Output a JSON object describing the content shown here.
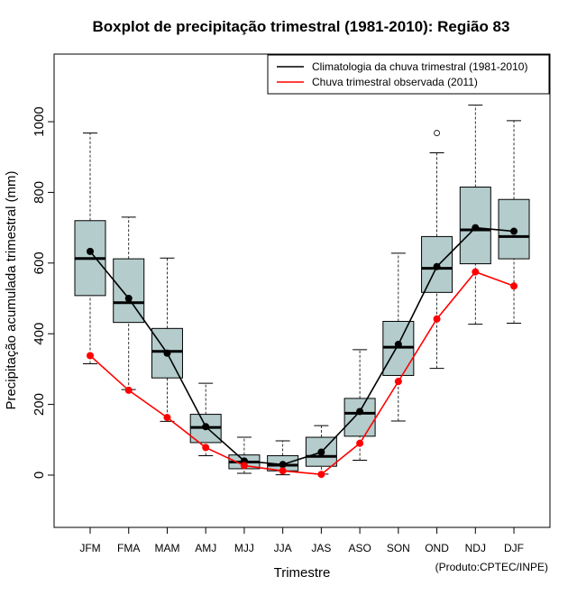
{
  "chart_data": {
    "type": "boxplot",
    "title": "Boxplot de precipitação trimestral (1981-2010): Região 83",
    "xlabel": "Trimestre",
    "ylabel": "Precipitação acumulada trimestral (mm)",
    "ylim": [
      -150,
      1200
    ],
    "yticks": [
      0,
      200,
      400,
      600,
      800,
      1000
    ],
    "categories": [
      "JFM",
      "FMA",
      "MAM",
      "AMJ",
      "MJJ",
      "JJA",
      "JAS",
      "ASO",
      "SON",
      "OND",
      "NDJ",
      "DJF"
    ],
    "boxes": [
      {
        "low": 315,
        "q1": 508,
        "median": 613,
        "q3": 720,
        "high": 968,
        "outliers": []
      },
      {
        "low": 242,
        "q1": 432,
        "median": 488,
        "q3": 612,
        "high": 730,
        "outliers": []
      },
      {
        "low": 152,
        "q1": 275,
        "median": 350,
        "q3": 415,
        "high": 614,
        "outliers": []
      },
      {
        "low": 55,
        "q1": 92,
        "median": 135,
        "q3": 172,
        "high": 260,
        "outliers": []
      },
      {
        "low": 5,
        "q1": 18,
        "median": 37,
        "q3": 57,
        "high": 107,
        "outliers": []
      },
      {
        "low": 1,
        "q1": 12,
        "median": 28,
        "q3": 55,
        "high": 97,
        "outliers": []
      },
      {
        "low": 3,
        "q1": 25,
        "median": 53,
        "q3": 107,
        "high": 140,
        "outliers": []
      },
      {
        "low": 42,
        "q1": 110,
        "median": 175,
        "q3": 217,
        "high": 355,
        "outliers": []
      },
      {
        "low": 153,
        "q1": 282,
        "median": 362,
        "q3": 435,
        "high": 628,
        "outliers": []
      },
      {
        "low": 302,
        "q1": 517,
        "median": 585,
        "q3": 675,
        "high": 912,
        "outliers": [
          968
        ]
      },
      {
        "low": 427,
        "q1": 598,
        "median": 694,
        "q3": 815,
        "high": 1047,
        "outliers": []
      },
      {
        "low": 430,
        "q1": 612,
        "median": 675,
        "q3": 780,
        "high": 1003,
        "outliers": []
      }
    ],
    "series": [
      {
        "name": "Climatologia da chuva trimestral (1981-2010)",
        "color": "#000000",
        "values": [
          633,
          500,
          345,
          137,
          40,
          30,
          65,
          180,
          370,
          590,
          700,
          690
        ]
      },
      {
        "name": "Chuva trimestral observada (2011)",
        "color": "#ff0000",
        "values": [
          338,
          240,
          163,
          78,
          27,
          12,
          2,
          90,
          265,
          442,
          575,
          535
        ]
      }
    ],
    "box_fill": "#b4cccc",
    "legend_position": "top-right",
    "credit": "(Produto:CPTEC/INPE)"
  }
}
